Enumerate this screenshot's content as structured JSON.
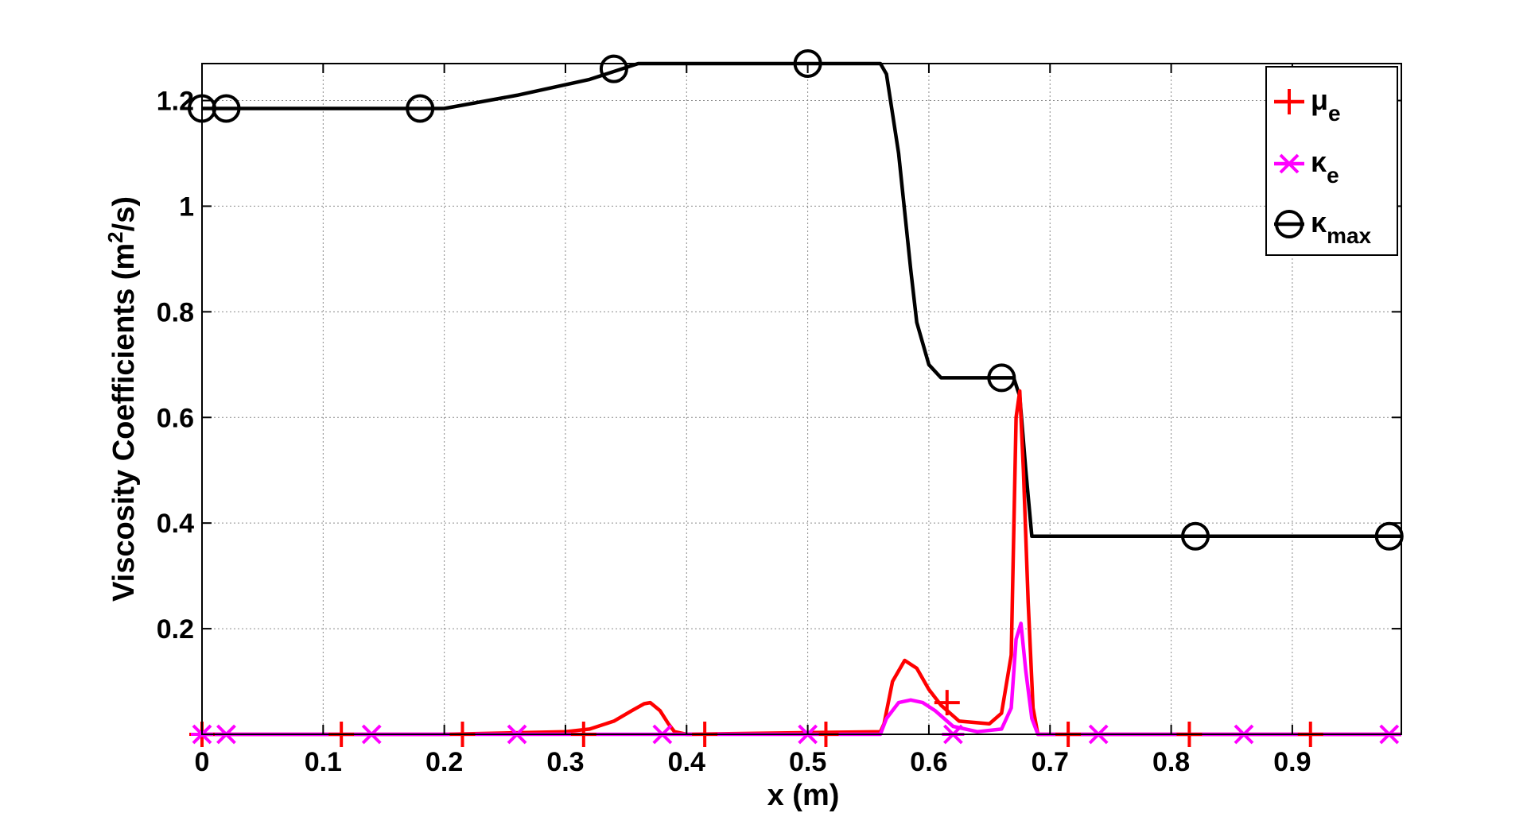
{
  "chart_data": {
    "type": "line",
    "title": "",
    "xlabel": "x (m)",
    "ylabel_main": "Viscosity Coefficients (m",
    "ylabel_sup": "2",
    "ylabel_end": "/s)",
    "xlim": [
      0,
      0.99
    ],
    "ylim": [
      0,
      1.27
    ],
    "grid": true,
    "legend_position": "top-right",
    "xticks": [
      0,
      0.1,
      0.2,
      0.3,
      0.4,
      0.5,
      0.6,
      0.7,
      0.8,
      0.9
    ],
    "xtick_labels": [
      "0",
      "0.1",
      "0.2",
      "0.3",
      "0.4",
      "0.5",
      "0.6",
      "0.7",
      "0.8",
      "0.9"
    ],
    "yticks": [
      0.2,
      0.4,
      0.6,
      0.8,
      1.0,
      1.2
    ],
    "ytick_labels": [
      "0.2",
      "0.4",
      "0.6",
      "0.8",
      "1",
      "1.2"
    ],
    "series": [
      {
        "name": "μ",
        "name_sub": "e",
        "color": "#ff0000",
        "marker": "plus",
        "x": [
          0,
          0.2,
          0.3,
          0.32,
          0.34,
          0.355,
          0.365,
          0.37,
          0.378,
          0.385,
          0.39,
          0.4,
          0.56,
          0.563,
          0.57,
          0.58,
          0.59,
          0.6,
          0.61,
          0.625,
          0.65,
          0.66,
          0.668,
          0.672,
          0.675,
          0.678,
          0.682,
          0.686,
          0.69,
          0.99
        ],
        "y": [
          0,
          0,
          0.005,
          0.01,
          0.025,
          0.045,
          0.058,
          0.06,
          0.045,
          0.02,
          0.005,
          0,
          0.005,
          0.02,
          0.1,
          0.14,
          0.125,
          0.085,
          0.055,
          0.025,
          0.02,
          0.04,
          0.15,
          0.6,
          0.65,
          0.5,
          0.25,
          0.05,
          0,
          0
        ],
        "marker_x": [
          0,
          0.115,
          0.215,
          0.315,
          0.415,
          0.515,
          0.615,
          0.715,
          0.815,
          0.915
        ],
        "marker_y": [
          0,
          0,
          0,
          0,
          0,
          0,
          0.06,
          0,
          0,
          0
        ]
      },
      {
        "name": "κ",
        "name_sub": "e",
        "color": "#ff00ff",
        "marker": "star",
        "x": [
          0,
          0.56,
          0.565,
          0.575,
          0.585,
          0.595,
          0.605,
          0.62,
          0.64,
          0.66,
          0.668,
          0.672,
          0.676,
          0.68,
          0.685,
          0.69,
          0.99
        ],
        "y": [
          0,
          0,
          0.03,
          0.06,
          0.065,
          0.06,
          0.045,
          0.015,
          0.005,
          0.01,
          0.05,
          0.18,
          0.21,
          0.12,
          0.03,
          0,
          0
        ],
        "marker_x": [
          0,
          0.02,
          0.14,
          0.26,
          0.38,
          0.5,
          0.62,
          0.74,
          0.86,
          0.98
        ],
        "marker_y": [
          0,
          0,
          0,
          0,
          0,
          0,
          0,
          0,
          0,
          0
        ]
      },
      {
        "name": "κ",
        "name_sub": "max",
        "color": "#000000",
        "marker": "circle",
        "x": [
          0,
          0.2,
          0.26,
          0.32,
          0.36,
          0.56,
          0.565,
          0.575,
          0.585,
          0.59,
          0.6,
          0.61,
          0.67,
          0.675,
          0.68,
          0.685,
          0.99
        ],
        "y": [
          1.185,
          1.185,
          1.21,
          1.24,
          1.27,
          1.27,
          1.25,
          1.1,
          0.88,
          0.78,
          0.7,
          0.675,
          0.675,
          0.64,
          0.5,
          0.375,
          0.375
        ],
        "marker_x": [
          0,
          0.02,
          0.18,
          0.34,
          0.5,
          0.66,
          0.82,
          0.98
        ],
        "marker_y": [
          1.185,
          1.185,
          1.185,
          1.26,
          1.27,
          0.675,
          0.375,
          0.375
        ]
      }
    ]
  }
}
